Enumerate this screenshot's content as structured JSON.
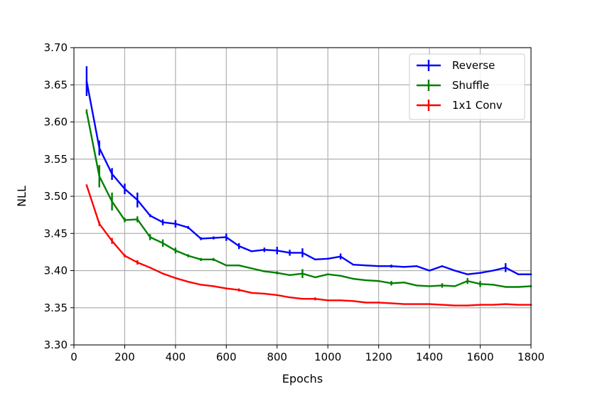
{
  "chart_data": {
    "type": "line",
    "title": "",
    "xlabel": "Epochs",
    "ylabel": "NLL",
    "xlim": [
      0,
      1800
    ],
    "ylim": [
      3.3,
      3.7
    ],
    "x_ticks": [
      0,
      200,
      400,
      600,
      800,
      1000,
      1200,
      1400,
      1600,
      1800
    ],
    "x_tick_labels": [
      "0",
      "200",
      "400",
      "600",
      "800",
      "1000",
      "1200",
      "1400",
      "1600",
      "1800"
    ],
    "y_ticks": [
      3.3,
      3.35,
      3.4,
      3.45,
      3.5,
      3.55,
      3.6,
      3.65,
      3.7
    ],
    "y_tick_labels": [
      "3.30",
      "3.35",
      "3.40",
      "3.45",
      "3.50",
      "3.55",
      "3.60",
      "3.65",
      "3.70"
    ],
    "grid": true,
    "legend_position": "top-right",
    "x": [
      50,
      100,
      150,
      200,
      250,
      300,
      350,
      400,
      450,
      500,
      550,
      600,
      650,
      700,
      750,
      800,
      850,
      900,
      950,
      1000,
      1050,
      1100,
      1150,
      1200,
      1250,
      1300,
      1350,
      1400,
      1450,
      1500,
      1550,
      1600,
      1650,
      1700,
      1750,
      1800
    ],
    "series": [
      {
        "name": "Reverse",
        "color": "#0000ff",
        "values": [
          3.655,
          3.565,
          3.53,
          3.51,
          3.495,
          3.474,
          3.465,
          3.463,
          3.458,
          3.443,
          3.444,
          3.445,
          3.433,
          3.426,
          3.428,
          3.427,
          3.424,
          3.424,
          3.415,
          3.416,
          3.419,
          3.408,
          3.407,
          3.406,
          3.406,
          3.405,
          3.406,
          3.4,
          3.406,
          3.4,
          3.395,
          3.397,
          3.4,
          3.404,
          3.395,
          3.395
        ],
        "errors": [
          0.02,
          0.01,
          0.008,
          0.007,
          0.01,
          0.002,
          0.004,
          0.005,
          0.002,
          0.002,
          0.002,
          0.005,
          0.004,
          0.001,
          0.003,
          0.005,
          0.004,
          0.006,
          0.001,
          0.001,
          0.004,
          0.001,
          0.001,
          0.001,
          0.002,
          0.001,
          0.001,
          0.001,
          0.001,
          0.001,
          0.001,
          0.001,
          0.001,
          0.006,
          0.001,
          0.001
        ]
      },
      {
        "name": "Shuffle",
        "color": "#008000",
        "values": [
          3.614,
          3.527,
          3.493,
          3.468,
          3.469,
          3.445,
          3.437,
          3.427,
          3.42,
          3.415,
          3.415,
          3.407,
          3.407,
          3.403,
          3.399,
          3.397,
          3.394,
          3.396,
          3.391,
          3.395,
          3.393,
          3.389,
          3.387,
          3.386,
          3.383,
          3.384,
          3.38,
          3.379,
          3.38,
          3.379,
          3.386,
          3.382,
          3.381,
          3.378,
          3.378,
          3.379
        ],
        "errors": [
          0.003,
          0.015,
          0.012,
          0.003,
          0.004,
          0.004,
          0.005,
          0.004,
          0.002,
          0.002,
          0.002,
          0.001,
          0.001,
          0.001,
          0.001,
          0.002,
          0.001,
          0.006,
          0.001,
          0.001,
          0.001,
          0.001,
          0.001,
          0.001,
          0.003,
          0.001,
          0.001,
          0.001,
          0.003,
          0.001,
          0.004,
          0.004,
          0.001,
          0.001,
          0.001,
          0.001
        ]
      },
      {
        "name": "1x1 Conv",
        "color": "#ff0000",
        "values": [
          3.515,
          3.463,
          3.44,
          3.42,
          3.411,
          3.404,
          3.396,
          3.39,
          3.385,
          3.381,
          3.379,
          3.376,
          3.374,
          3.37,
          3.369,
          3.367,
          3.364,
          3.362,
          3.362,
          3.36,
          3.36,
          3.359,
          3.357,
          3.357,
          3.356,
          3.355,
          3.355,
          3.355,
          3.354,
          3.353,
          3.353,
          3.354,
          3.354,
          3.355,
          3.354,
          3.354
        ],
        "errors": [
          0.001,
          0.003,
          0.004,
          0.002,
          0.003,
          0.001,
          0.001,
          0.001,
          0.001,
          0.001,
          0.001,
          0.001,
          0.002,
          0.001,
          0.001,
          0.001,
          0.001,
          0.001,
          0.002,
          0.001,
          0.001,
          0.001,
          0.001,
          0.001,
          0.001,
          0.001,
          0.001,
          0.001,
          0.001,
          0.001,
          0.001,
          0.001,
          0.001,
          0.001,
          0.001,
          0.001
        ]
      }
    ]
  }
}
